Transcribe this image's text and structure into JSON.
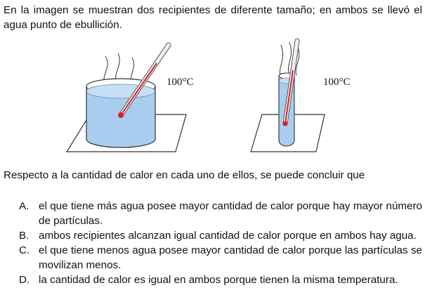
{
  "intro_text": "En la imagen se muestran dos recipientes de diferente tamaño; en ambos se llevó el agua punto de ebullición.",
  "figure": {
    "left_container": {
      "temperature_label": "100°C"
    },
    "right_container": {
      "temperature_label": "100°C"
    },
    "colors": {
      "water": "#a9cdef",
      "thermometer_red": "#d9202a",
      "outline": "#333333"
    }
  },
  "question_text": "Respecto a la cantidad de calor en cada uno de ellos, se puede concluir que",
  "options": [
    {
      "letter": "A.",
      "text": "el que tiene más agua posee mayor cantidad de calor porque hay mayor número de partículas."
    },
    {
      "letter": "B.",
      "text": "ambos recipientes alcanzan igual cantidad de calor porque en ambos hay agua."
    },
    {
      "letter": "C.",
      "text": "el que tiene menos agua posee mayor cantidad de calor porque las partículas se movilizan menos."
    },
    {
      "letter": "D.",
      "text": "la cantidad de calor es igual en ambos porque tienen la misma temperatura."
    }
  ]
}
